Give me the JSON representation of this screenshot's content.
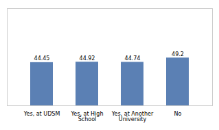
{
  "chart_data": {
    "type": "bar",
    "categories": [
      "Yes, at UDSM",
      "Yes, at High School",
      "Yes, at Another\nUniversity",
      "No"
    ],
    "values": [
      44.45,
      44.92,
      44.74,
      49.2
    ],
    "color": "#5b80b4",
    "ylim": [
      0,
      100
    ],
    "data_labels": true,
    "tick_labels": "x"
  }
}
